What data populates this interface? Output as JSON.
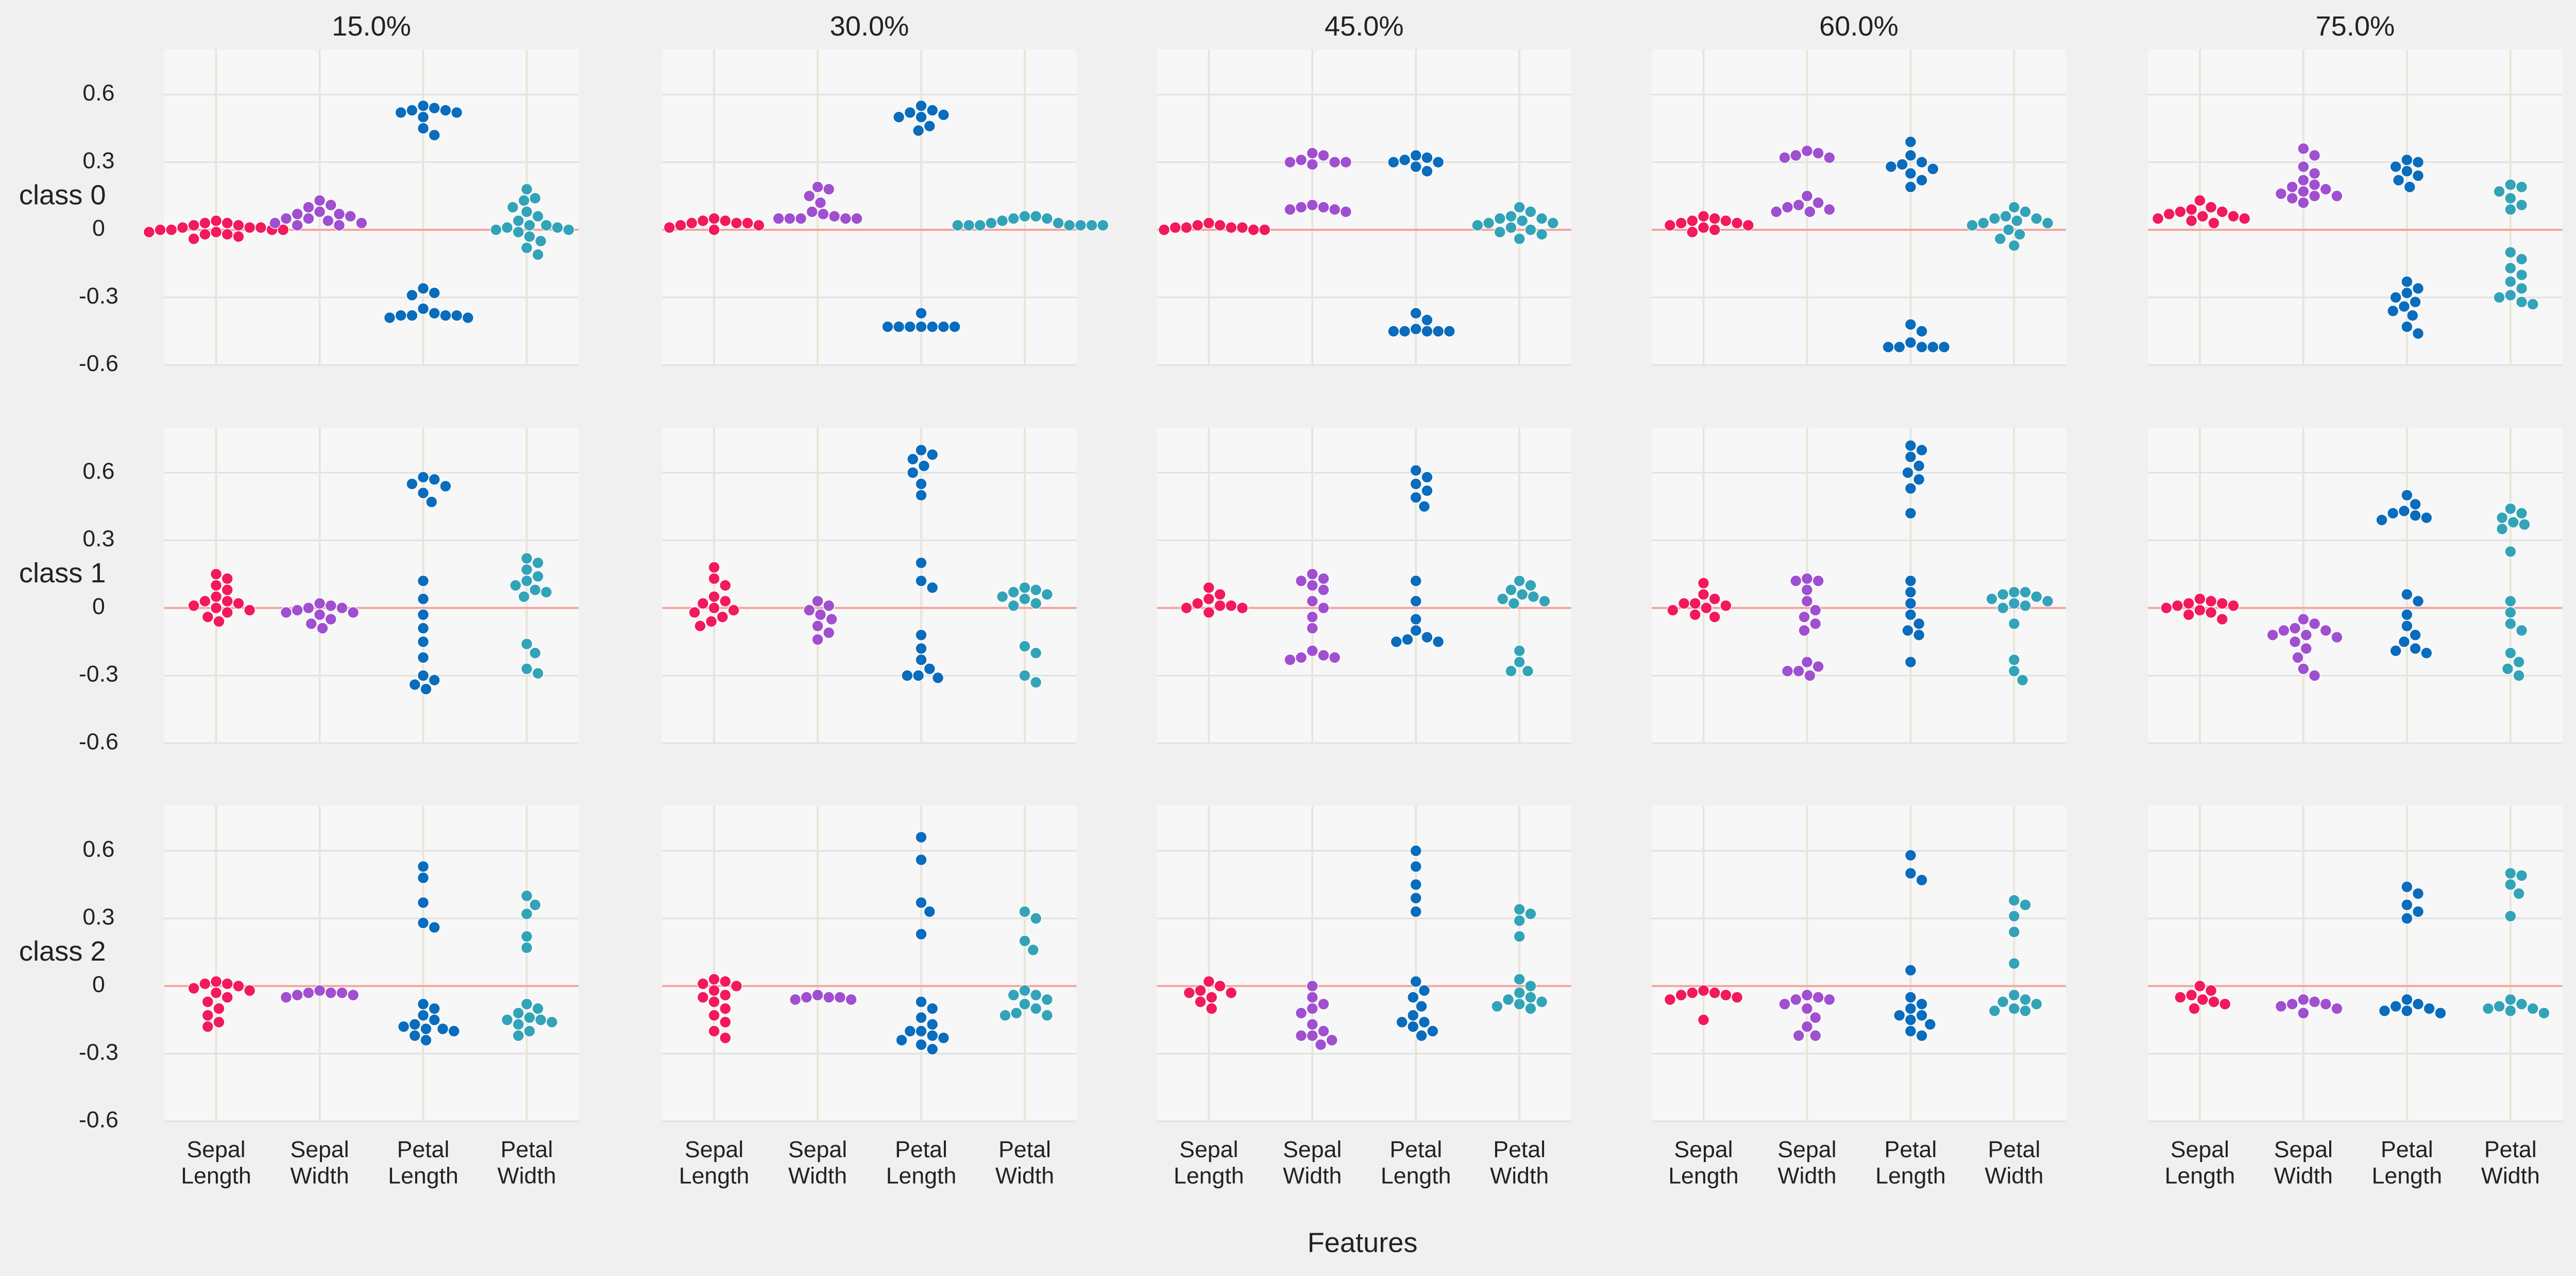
{
  "chart_data": {
    "type": "swarm",
    "xlabel": "Features",
    "col_titles": [
      "15.0%",
      "30.0%",
      "45.0%",
      "60.0%",
      "75.0%"
    ],
    "row_labels": [
      "class 0",
      "class 1",
      "class 2"
    ],
    "categories": [
      [
        "Sepal",
        "Length"
      ],
      [
        "Sepal",
        "Width"
      ],
      [
        "Petal",
        "Length"
      ],
      [
        "Petal",
        "Width"
      ]
    ],
    "colors": [
      "#f2195c",
      "#a04fd0",
      "#0a6cbc",
      "#33a3b8"
    ],
    "ylim": [
      -0.6,
      0.8
    ],
    "yticks": [
      0.6,
      0.3,
      0,
      -0.3,
      -0.6
    ],
    "hline": 0,
    "grid": true,
    "panels": [
      [
        [
          [
            0.04,
            0.03,
            0.02,
            0.02,
            0.01,
            0.01,
            0,
            0,
            0,
            -0.01,
            -0.01,
            -0.02,
            -0.03,
            -0.04,
            0.03,
            0.01,
            0,
            -0.02
          ],
          [
            0.13,
            0.11,
            0.1,
            0.08,
            0.07,
            0.07,
            0.06,
            0.05,
            0.05,
            0.04,
            0.03,
            0.03,
            0.02,
            0.02
          ],
          [
            0.55,
            0.54,
            0.53,
            0.52,
            0.52,
            0.53,
            0.5,
            0.45,
            0.42,
            -0.26,
            -0.28,
            -0.29,
            -0.35,
            -0.37,
            -0.38,
            -0.38,
            -0.38,
            -0.38,
            -0.39,
            -0.39
          ],
          [
            0.18,
            0.14,
            0.13,
            0.1,
            0.08,
            0.06,
            0.04,
            0.02,
            0.01,
            0,
            0,
            -0.01,
            -0.03,
            -0.05,
            -0.08,
            -0.11,
            0.02,
            0.01
          ]
        ],
        [
          [
            0.05,
            0.04,
            0.03,
            0.03,
            0.02,
            0.02,
            0.01,
            0,
            0.04,
            0.03
          ],
          [
            0.19,
            0.18,
            0.15,
            0.12,
            0.08,
            0.07,
            0.06,
            0.05,
            0.05,
            0.05,
            0.05,
            0.05
          ],
          [
            0.55,
            0.53,
            0.52,
            0.51,
            0.5,
            0.5,
            0.46,
            0.44,
            -0.37,
            -0.43,
            -0.43,
            -0.43,
            -0.43,
            -0.43,
            -0.43,
            -0.43
          ],
          [
            0.06,
            0.06,
            0.05,
            0.04,
            0.03,
            0.02,
            0.02,
            0.02,
            0.02,
            0.02,
            0.02,
            0.02,
            0.05,
            0.03
          ]
        ],
        [
          [
            0.03,
            0.02,
            0.01,
            0.01,
            0.01,
            0,
            0,
            0,
            0.02,
            0.01
          ],
          [
            0.34,
            0.33,
            0.31,
            0.3,
            0.3,
            0.3,
            0.29,
            0.11,
            0.1,
            0.1,
            0.09,
            0.09,
            0.08
          ],
          [
            0.33,
            0.32,
            0.31,
            0.3,
            0.3,
            0.28,
            0.26,
            -0.37,
            -0.4,
            -0.44,
            -0.45,
            -0.45,
            -0.45,
            -0.45,
            -0.45
          ],
          [
            0.1,
            0.08,
            0.06,
            0.05,
            0.04,
            0.03,
            0.02,
            0.01,
            0,
            -0.01,
            -0.02,
            -0.04,
            0.05,
            0.03
          ]
        ],
        [
          [
            0.06,
            0.05,
            0.04,
            0.04,
            0.03,
            0.02,
            0.01,
            0,
            -0.01,
            0.03,
            0.02
          ],
          [
            0.35,
            0.34,
            0.33,
            0.32,
            0.32,
            0.15,
            0.12,
            0.11,
            0.1,
            0.09,
            0.08,
            0.08
          ],
          [
            0.39,
            0.33,
            0.3,
            0.29,
            0.28,
            0.27,
            0.25,
            0.22,
            0.19,
            -0.42,
            -0.45,
            -0.5,
            -0.52,
            -0.52,
            -0.52,
            -0.52,
            -0.52
          ],
          [
            0.1,
            0.08,
            0.06,
            0.05,
            0.04,
            0.03,
            0.02,
            0,
            -0.02,
            -0.04,
            -0.07,
            0.05,
            0.03
          ]
        ],
        [
          [
            0.13,
            0.1,
            0.09,
            0.08,
            0.07,
            0.06,
            0.05,
            0.05,
            0.04,
            0.03,
            0.06,
            0.08
          ],
          [
            0.36,
            0.33,
            0.28,
            0.25,
            0.22,
            0.2,
            0.18,
            0.17,
            0.16,
            0.15,
            0.14,
            0.12,
            0.15,
            0.19
          ],
          [
            0.31,
            0.3,
            0.28,
            0.26,
            0.24,
            0.22,
            0.19,
            -0.23,
            -0.26,
            -0.28,
            -0.3,
            -0.32,
            -0.34,
            -0.36,
            -0.38,
            -0.43,
            -0.46
          ],
          [
            0.2,
            0.19,
            0.17,
            0.14,
            0.11,
            0.09,
            -0.1,
            -0.13,
            -0.17,
            -0.2,
            -0.23,
            -0.26,
            -0.29,
            -0.3,
            -0.32,
            -0.33
          ]
        ]
      ],
      [
        [
          [
            0.15,
            0.13,
            0.1,
            0.08,
            0.05,
            0.03,
            0.02,
            0,
            -0.02,
            -0.04,
            -0.06,
            0.01,
            0.03,
            -0.01
          ],
          [
            0.02,
            0.01,
            0,
            -0.01,
            -0.02,
            -0.03,
            -0.05,
            -0.07,
            -0.09,
            0,
            -0.02
          ],
          [
            0.58,
            0.57,
            0.55,
            0.54,
            0.51,
            0.47,
            0.12,
            0.04,
            -0.03,
            -0.09,
            -0.15,
            -0.22,
            -0.3,
            -0.32,
            -0.34,
            -0.36
          ],
          [
            0.22,
            0.2,
            0.17,
            0.14,
            0.12,
            0.1,
            0.08,
            0.07,
            0.05,
            -0.16,
            -0.2,
            -0.27,
            -0.29
          ]
        ],
        [
          [
            0.18,
            0.13,
            0.1,
            0.05,
            0.02,
            0,
            -0.02,
            -0.04,
            -0.06,
            -0.08,
            0.03,
            -0.01
          ],
          [
            0.03,
            0.01,
            -0.01,
            -0.03,
            -0.05,
            -0.08,
            -0.11,
            -0.14
          ],
          [
            0.7,
            0.68,
            0.66,
            0.63,
            0.6,
            0.55,
            0.5,
            0.2,
            0.12,
            0.09,
            -0.12,
            -0.18,
            -0.23,
            -0.27,
            -0.3,
            -0.3,
            -0.31
          ],
          [
            0.09,
            0.08,
            0.07,
            0.05,
            0.04,
            0.02,
            0.01,
            -0.17,
            -0.2,
            -0.3,
            -0.33,
            0.06
          ]
        ],
        [
          [
            0.09,
            0.06,
            0.04,
            0.02,
            0.01,
            0,
            0,
            -0.02,
            0.01
          ],
          [
            0.15,
            0.13,
            0.12,
            0.1,
            0.08,
            0.03,
            0,
            -0.04,
            -0.09,
            -0.19,
            -0.21,
            -0.22,
            -0.23,
            -0.22
          ],
          [
            0.61,
            0.58,
            0.55,
            0.52,
            0.49,
            0.45,
            0.12,
            0.03,
            -0.05,
            -0.1,
            -0.13,
            -0.14,
            -0.15,
            -0.15
          ],
          [
            0.12,
            0.1,
            0.08,
            0.06,
            0.05,
            0.04,
            0.03,
            0.02,
            -0.19,
            -0.24,
            -0.28,
            -0.28
          ]
        ],
        [
          [
            0.11,
            0.06,
            0.04,
            0.02,
            0.01,
            0,
            -0.01,
            -0.03,
            -0.04,
            0.02
          ],
          [
            0.13,
            0.12,
            0.12,
            0.08,
            0.03,
            -0.01,
            -0.04,
            -0.07,
            -0.1,
            -0.24,
            -0.26,
            -0.28,
            -0.3,
            -0.28
          ],
          [
            0.72,
            0.7,
            0.67,
            0.63,
            0.6,
            0.57,
            0.53,
            0.42,
            0.12,
            0.07,
            0.02,
            -0.03,
            -0.07,
            -0.1,
            -0.12,
            -0.24
          ],
          [
            0.07,
            0.07,
            0.06,
            0.05,
            0.04,
            0.03,
            0.02,
            0.01,
            0,
            -0.07,
            -0.23,
            -0.28,
            -0.32
          ]
        ],
        [
          [
            0.04,
            0.03,
            0.02,
            0.01,
            0,
            -0.01,
            -0.02,
            -0.03,
            -0.05,
            0.02,
            0.01
          ],
          [
            -0.05,
            -0.07,
            -0.09,
            -0.1,
            -0.12,
            -0.13,
            -0.15,
            -0.18,
            -0.22,
            -0.27,
            -0.3,
            -0.1,
            -0.12
          ],
          [
            0.5,
            0.46,
            0.43,
            0.42,
            0.41,
            0.4,
            0.39,
            0.06,
            0.03,
            -0.03,
            -0.08,
            -0.12,
            -0.15,
            -0.18,
            -0.19,
            -0.2
          ],
          [
            0.44,
            0.42,
            0.4,
            0.38,
            0.37,
            0.35,
            0.25,
            0.03,
            -0.02,
            -0.07,
            -0.1,
            -0.2,
            -0.24,
            -0.27,
            -0.3
          ]
        ]
      ],
      [
        [
          [
            0.02,
            0.01,
            0,
            -0.01,
            -0.03,
            -0.05,
            -0.07,
            -0.1,
            -0.13,
            -0.16,
            -0.18,
            0.01,
            -0.02
          ],
          [
            -0.02,
            -0.03,
            -0.03,
            -0.04,
            -0.05,
            -0.04,
            -0.03
          ],
          [
            0.53,
            0.48,
            0.37,
            0.28,
            0.26,
            -0.08,
            -0.1,
            -0.13,
            -0.17,
            -0.18,
            -0.19,
            -0.19,
            -0.2,
            -0.22,
            -0.24,
            -0.15
          ],
          [
            0.4,
            0.36,
            0.32,
            0.22,
            0.17,
            -0.08,
            -0.1,
            -0.12,
            -0.14,
            -0.15,
            -0.16,
            -0.17,
            -0.2,
            -0.22,
            -0.15
          ]
        ],
        [
          [
            0.03,
            0.02,
            0,
            -0.02,
            -0.04,
            -0.07,
            -0.1,
            -0.13,
            -0.16,
            -0.2,
            -0.23,
            0.01,
            -0.05
          ],
          [
            -0.04,
            -0.05,
            -0.05,
            -0.06,
            -0.06,
            -0.05
          ],
          [
            0.66,
            0.56,
            0.37,
            0.33,
            0.23,
            -0.07,
            -0.1,
            -0.14,
            -0.17,
            -0.2,
            -0.22,
            -0.23,
            -0.24,
            -0.26,
            -0.28,
            -0.2
          ],
          [
            0.33,
            0.3,
            0.2,
            0.16,
            -0.02,
            -0.04,
            -0.06,
            -0.08,
            -0.1,
            -0.12,
            -0.13,
            -0.13,
            -0.04
          ]
        ],
        [
          [
            0.02,
            0,
            -0.02,
            -0.03,
            -0.05,
            -0.07,
            -0.1,
            -0.03
          ],
          [
            0,
            -0.05,
            -0.08,
            -0.1,
            -0.12,
            -0.17,
            -0.2,
            -0.22,
            -0.24,
            -0.26,
            -0.22
          ],
          [
            0.6,
            0.53,
            0.45,
            0.39,
            0.33,
            0.02,
            -0.02,
            -0.05,
            -0.09,
            -0.13,
            -0.16,
            -0.18,
            -0.2,
            -0.22,
            -0.16
          ],
          [
            0.34,
            0.32,
            0.29,
            0.22,
            0.03,
            0,
            -0.03,
            -0.05,
            -0.07,
            -0.08,
            -0.09,
            -0.1,
            -0.06
          ]
        ],
        [
          [
            -0.02,
            -0.03,
            -0.04,
            -0.05,
            -0.06,
            -0.15,
            -0.04,
            -0.03
          ],
          [
            -0.04,
            -0.05,
            -0.06,
            -0.08,
            -0.1,
            -0.14,
            -0.18,
            -0.22,
            -0.22,
            -0.06
          ],
          [
            0.58,
            0.5,
            0.47,
            0.07,
            -0.05,
            -0.08,
            -0.1,
            -0.13,
            -0.15,
            -0.17,
            -0.2,
            -0.22,
            -0.13
          ],
          [
            0.38,
            0.36,
            0.31,
            0.24,
            0.1,
            -0.04,
            -0.06,
            -0.08,
            -0.1,
            -0.11,
            -0.11,
            -0.07
          ]
        ],
        [
          [
            0,
            -0.02,
            -0.04,
            -0.06,
            -0.08,
            -0.1,
            -0.05,
            -0.07
          ],
          [
            -0.06,
            -0.07,
            -0.08,
            -0.09,
            -0.1,
            -0.12,
            -0.08
          ],
          [
            0.44,
            0.41,
            0.36,
            0.33,
            0.3,
            -0.06,
            -0.08,
            -0.09,
            -0.1,
            -0.11,
            -0.11,
            -0.12
          ],
          [
            0.5,
            0.49,
            0.45,
            0.41,
            0.31,
            -0.06,
            -0.08,
            -0.09,
            -0.1,
            -0.11,
            -0.12,
            -0.1
          ]
        ]
      ]
    ]
  }
}
